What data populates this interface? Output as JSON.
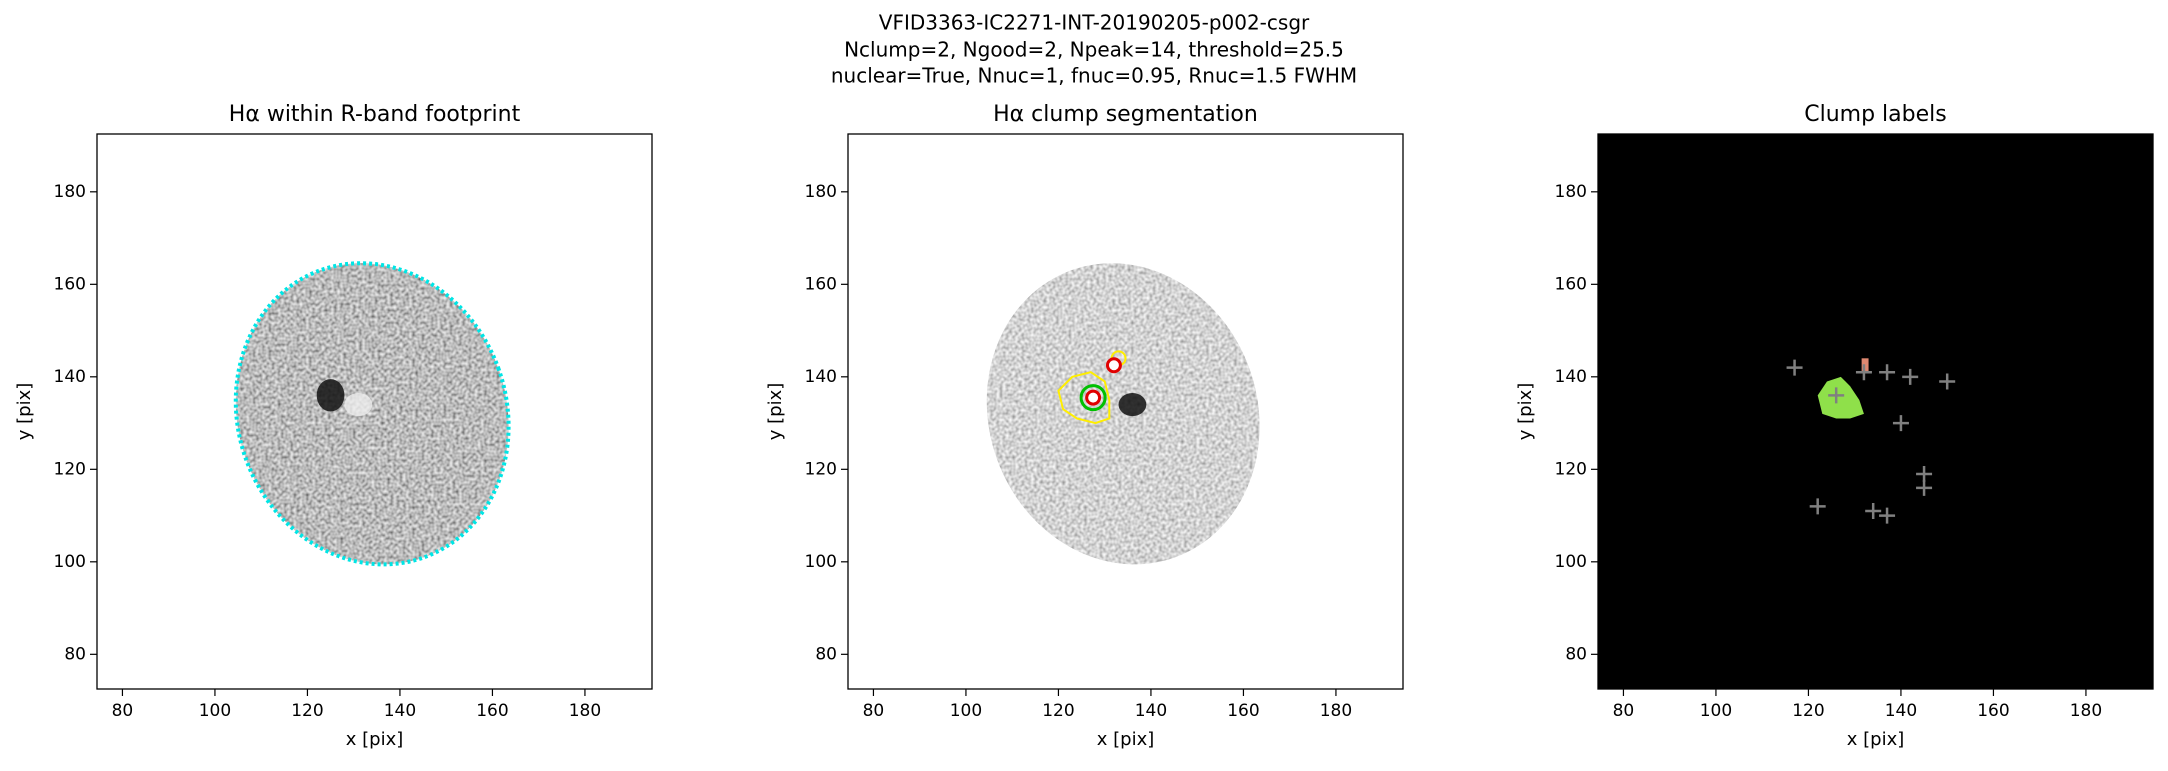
{
  "title": [
    "VFID3363-IC2271-INT-20190205-p002-csgr",
    "Nclump=2, Ngood=2, Npeak=14, threshold=25.5",
    "nuclear=True, Nnuc=1, fnuc=0.95, Rnuc=1.5 FWHM"
  ],
  "chart_data": [
    {
      "type": "image",
      "title": "Hα within R-band footprint",
      "xlabel": "x [pix]",
      "ylabel": "y [pix]",
      "xlim": [
        74.5,
        194.5
      ],
      "ylim": [
        72.5,
        192.5
      ],
      "xticks": [
        80,
        100,
        120,
        140,
        160,
        180
      ],
      "yticks": [
        80,
        100,
        120,
        140,
        160,
        180
      ],
      "background": "#ffffff",
      "footprint_color": "#00e5e5"
    },
    {
      "type": "image",
      "title": "Hα clump segmentation",
      "xlabel": "x [pix]",
      "ylabel": "y [pix]",
      "xlim": [
        74.5,
        194.5
      ],
      "ylim": [
        72.5,
        192.5
      ],
      "xticks": [
        80,
        100,
        120,
        140,
        160,
        180
      ],
      "yticks": [
        80,
        100,
        120,
        140,
        160,
        180
      ],
      "background": "#ffffff",
      "contour_color": "#ffee00",
      "clumps": {
        "x": [
          127.5,
          132
        ],
        "y": [
          135.5,
          142.5
        ],
        "color": "#e00000",
        "nuclear_color": "#00c000"
      }
    },
    {
      "type": "image",
      "title": "Clump labels",
      "xlabel": "x [pix]",
      "ylabel": "y [pix]",
      "xlim": [
        74.5,
        194.5
      ],
      "ylim": [
        72.5,
        192.5
      ],
      "xticks": [
        80,
        100,
        120,
        140,
        160,
        180
      ],
      "yticks": [
        80,
        100,
        120,
        140,
        160,
        180
      ],
      "background": "#000000",
      "label_colors": [
        "#8fe04a",
        "#e08870"
      ],
      "peaks": {
        "x": [
          117,
          132,
          137,
          142,
          150,
          140,
          145,
          145,
          122,
          134,
          137,
          126
        ],
        "y": [
          142,
          141,
          141,
          140,
          139,
          130,
          119,
          116,
          112,
          111,
          110,
          136
        ],
        "color": "#808080"
      }
    }
  ]
}
